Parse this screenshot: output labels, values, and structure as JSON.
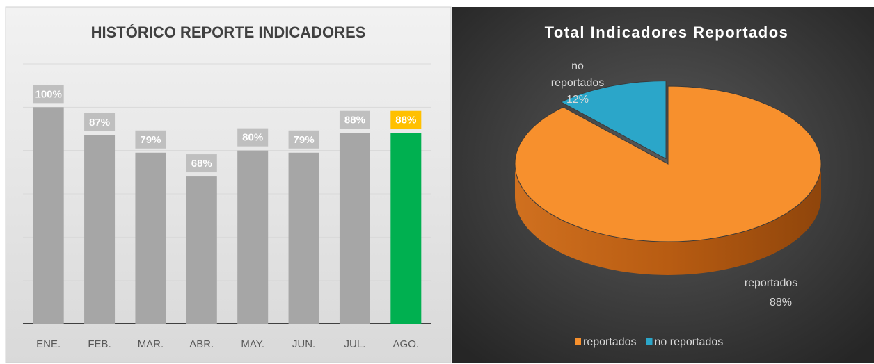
{
  "chart_data": [
    {
      "type": "bar",
      "title": "HISTÓRICO REPORTE INDICADORES",
      "categories": [
        "ENE.",
        "FEB.",
        "MAR.",
        "ABR.",
        "MAY.",
        "JUN.",
        "JUL.",
        "AGO."
      ],
      "values": [
        100,
        87,
        79,
        68,
        80,
        79,
        88,
        88
      ],
      "value_labels": [
        "100%",
        "87%",
        "79%",
        "68%",
        "80%",
        "79%",
        "88%",
        "88%"
      ],
      "colors": [
        "#a6a6a6",
        "#a6a6a6",
        "#a6a6a6",
        "#a6a6a6",
        "#a6a6a6",
        "#a6a6a6",
        "#a6a6a6",
        "#00b050"
      ],
      "label_colors": [
        "#bfbfbf",
        "#bfbfbf",
        "#bfbfbf",
        "#bfbfbf",
        "#bfbfbf",
        "#bfbfbf",
        "#bfbfbf",
        "#ffc000"
      ],
      "ylim": [
        0,
        120
      ],
      "yticks": [
        0,
        20,
        40,
        60,
        80,
        100,
        120
      ],
      "grid": true
    },
    {
      "type": "pie",
      "title": "Total Indicadores Reportados",
      "categories": [
        "reportados",
        "no reportados"
      ],
      "label_lines": [
        [
          "reportados"
        ],
        [
          "no",
          "reportados"
        ]
      ],
      "values": [
        88,
        12
      ],
      "value_labels": [
        "88%",
        "12%"
      ],
      "colors": [
        "#f7902d",
        "#2ba6c9"
      ],
      "legend": "bottom"
    }
  ]
}
